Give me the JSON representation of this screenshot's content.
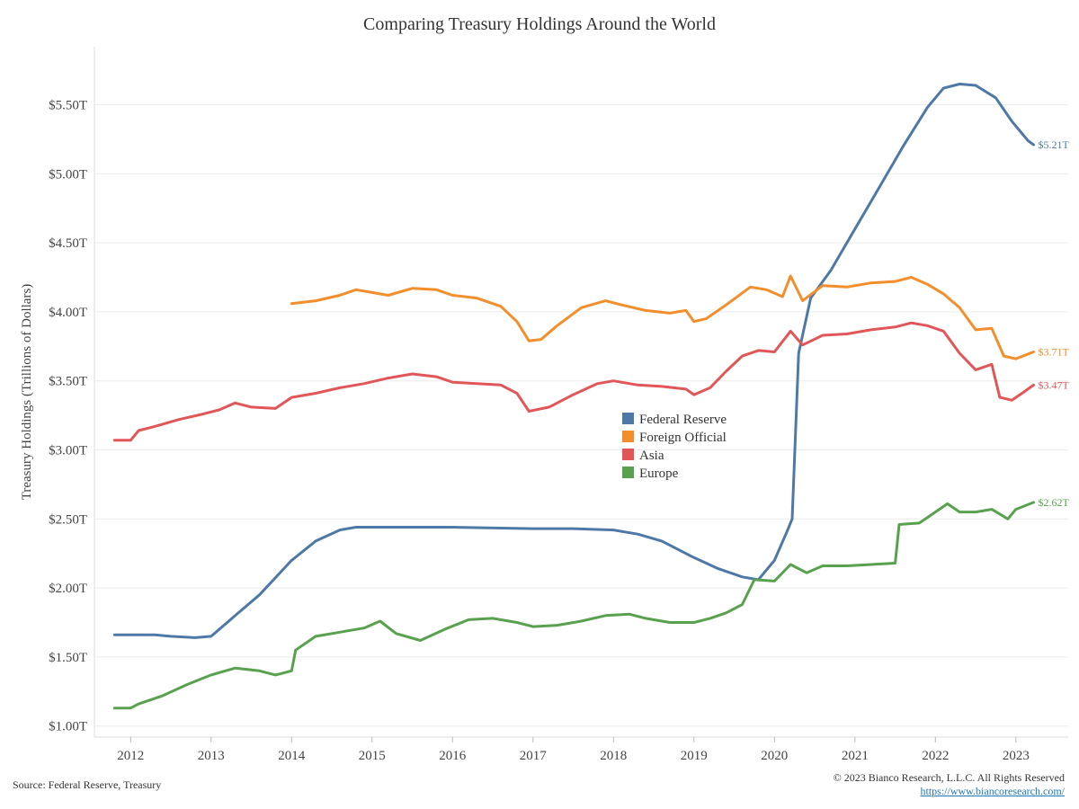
{
  "chart_data": {
    "type": "line",
    "title": "Comparing Treasury Holdings Around the World",
    "ylabel": "Treasury Holdings (Trillions of Dollars)",
    "xlabel": "",
    "xlim": [
      2011.55,
      2023.65
    ],
    "ylim": [
      0.92,
      5.92
    ],
    "x_ticks": [
      2012,
      2013,
      2014,
      2015,
      2016,
      2017,
      2018,
      2019,
      2020,
      2021,
      2022,
      2023
    ],
    "x_tick_labels": [
      "2012",
      "2013",
      "2014",
      "2015",
      "2016",
      "2017",
      "2018",
      "2019",
      "2020",
      "2021",
      "2022",
      "2023"
    ],
    "y_ticks": [
      1.0,
      1.5,
      2.0,
      2.5,
      3.0,
      3.5,
      4.0,
      4.5,
      5.0,
      5.5
    ],
    "y_tick_labels": [
      "$1.00T",
      "$1.50T",
      "$2.00T",
      "$2.50T",
      "$3.00T",
      "$3.50T",
      "$4.00T",
      "$4.50T",
      "$5.00T",
      "$5.50T"
    ],
    "grid": "horizontal",
    "legend_position": "center",
    "series": [
      {
        "name": "Federal Reserve",
        "color": "#4e79a7",
        "end_label": "$5.21T",
        "points": [
          [
            2011.8,
            1.66
          ],
          [
            2012.0,
            1.66
          ],
          [
            2012.3,
            1.66
          ],
          [
            2012.5,
            1.65
          ],
          [
            2012.8,
            1.64
          ],
          [
            2013.0,
            1.65
          ],
          [
            2013.3,
            1.8
          ],
          [
            2013.6,
            1.95
          ],
          [
            2014.0,
            2.2
          ],
          [
            2014.3,
            2.34
          ],
          [
            2014.6,
            2.42
          ],
          [
            2014.8,
            2.44
          ],
          [
            2015.0,
            2.44
          ],
          [
            2016.0,
            2.44
          ],
          [
            2017.0,
            2.43
          ],
          [
            2017.5,
            2.43
          ],
          [
            2018.0,
            2.42
          ],
          [
            2018.3,
            2.39
          ],
          [
            2018.6,
            2.34
          ],
          [
            2019.0,
            2.22
          ],
          [
            2019.3,
            2.14
          ],
          [
            2019.6,
            2.08
          ],
          [
            2019.8,
            2.06
          ],
          [
            2020.0,
            2.2
          ],
          [
            2020.15,
            2.4
          ],
          [
            2020.22,
            2.5
          ],
          [
            2020.3,
            3.7
          ],
          [
            2020.45,
            4.1
          ],
          [
            2020.7,
            4.3
          ],
          [
            2021.0,
            4.6
          ],
          [
            2021.3,
            4.9
          ],
          [
            2021.6,
            5.2
          ],
          [
            2021.9,
            5.48
          ],
          [
            2022.1,
            5.62
          ],
          [
            2022.3,
            5.65
          ],
          [
            2022.5,
            5.64
          ],
          [
            2022.75,
            5.55
          ],
          [
            2022.95,
            5.38
          ],
          [
            2023.15,
            5.24
          ],
          [
            2023.22,
            5.21
          ]
        ]
      },
      {
        "name": "Foreign Official",
        "color": "#f28e2b",
        "end_label": "$3.71T",
        "points": [
          [
            2014.0,
            4.06
          ],
          [
            2014.3,
            4.08
          ],
          [
            2014.6,
            4.12
          ],
          [
            2014.8,
            4.16
          ],
          [
            2015.0,
            4.14
          ],
          [
            2015.2,
            4.12
          ],
          [
            2015.5,
            4.17
          ],
          [
            2015.8,
            4.16
          ],
          [
            2016.0,
            4.12
          ],
          [
            2016.3,
            4.1
          ],
          [
            2016.6,
            4.04
          ],
          [
            2016.8,
            3.93
          ],
          [
            2016.95,
            3.79
          ],
          [
            2017.1,
            3.8
          ],
          [
            2017.3,
            3.9
          ],
          [
            2017.6,
            4.03
          ],
          [
            2017.9,
            4.08
          ],
          [
            2018.1,
            4.05
          ],
          [
            2018.4,
            4.01
          ],
          [
            2018.7,
            3.99
          ],
          [
            2018.9,
            4.01
          ],
          [
            2019.0,
            3.93
          ],
          [
            2019.15,
            3.95
          ],
          [
            2019.4,
            4.05
          ],
          [
            2019.7,
            4.18
          ],
          [
            2019.9,
            4.16
          ],
          [
            2020.1,
            4.11
          ],
          [
            2020.2,
            4.26
          ],
          [
            2020.35,
            4.08
          ],
          [
            2020.6,
            4.19
          ],
          [
            2020.9,
            4.18
          ],
          [
            2021.2,
            4.21
          ],
          [
            2021.5,
            4.22
          ],
          [
            2021.7,
            4.25
          ],
          [
            2021.9,
            4.2
          ],
          [
            2022.1,
            4.13
          ],
          [
            2022.3,
            4.03
          ],
          [
            2022.5,
            3.87
          ],
          [
            2022.7,
            3.88
          ],
          [
            2022.85,
            3.68
          ],
          [
            2023.0,
            3.66
          ],
          [
            2023.22,
            3.71
          ]
        ]
      },
      {
        "name": "Asia",
        "color": "#e15759",
        "end_label": "$3.47T",
        "points": [
          [
            2011.8,
            3.07
          ],
          [
            2012.0,
            3.07
          ],
          [
            2012.1,
            3.14
          ],
          [
            2012.3,
            3.17
          ],
          [
            2012.6,
            3.22
          ],
          [
            2012.9,
            3.26
          ],
          [
            2013.1,
            3.29
          ],
          [
            2013.3,
            3.34
          ],
          [
            2013.5,
            3.31
          ],
          [
            2013.8,
            3.3
          ],
          [
            2014.0,
            3.38
          ],
          [
            2014.3,
            3.41
          ],
          [
            2014.6,
            3.45
          ],
          [
            2014.9,
            3.48
          ],
          [
            2015.2,
            3.52
          ],
          [
            2015.5,
            3.55
          ],
          [
            2015.8,
            3.53
          ],
          [
            2016.0,
            3.49
          ],
          [
            2016.3,
            3.48
          ],
          [
            2016.6,
            3.47
          ],
          [
            2016.8,
            3.41
          ],
          [
            2016.95,
            3.28
          ],
          [
            2017.2,
            3.31
          ],
          [
            2017.5,
            3.4
          ],
          [
            2017.8,
            3.48
          ],
          [
            2018.0,
            3.5
          ],
          [
            2018.3,
            3.47
          ],
          [
            2018.6,
            3.46
          ],
          [
            2018.9,
            3.44
          ],
          [
            2019.0,
            3.4
          ],
          [
            2019.2,
            3.45
          ],
          [
            2019.4,
            3.57
          ],
          [
            2019.6,
            3.68
          ],
          [
            2019.8,
            3.72
          ],
          [
            2020.0,
            3.71
          ],
          [
            2020.2,
            3.86
          ],
          [
            2020.35,
            3.76
          ],
          [
            2020.6,
            3.83
          ],
          [
            2020.9,
            3.84
          ],
          [
            2021.2,
            3.87
          ],
          [
            2021.5,
            3.89
          ],
          [
            2021.7,
            3.92
          ],
          [
            2021.9,
            3.9
          ],
          [
            2022.1,
            3.86
          ],
          [
            2022.3,
            3.7
          ],
          [
            2022.5,
            3.58
          ],
          [
            2022.7,
            3.62
          ],
          [
            2022.8,
            3.38
          ],
          [
            2022.95,
            3.36
          ],
          [
            2023.1,
            3.42
          ],
          [
            2023.22,
            3.47
          ]
        ]
      },
      {
        "name": "Europe",
        "color": "#59a14f",
        "end_label": "$2.62T",
        "points": [
          [
            2011.8,
            1.13
          ],
          [
            2012.0,
            1.13
          ],
          [
            2012.1,
            1.16
          ],
          [
            2012.4,
            1.22
          ],
          [
            2012.7,
            1.3
          ],
          [
            2013.0,
            1.37
          ],
          [
            2013.3,
            1.42
          ],
          [
            2013.6,
            1.4
          ],
          [
            2013.8,
            1.37
          ],
          [
            2014.0,
            1.4
          ],
          [
            2014.05,
            1.55
          ],
          [
            2014.3,
            1.65
          ],
          [
            2014.6,
            1.68
          ],
          [
            2014.9,
            1.71
          ],
          [
            2015.1,
            1.76
          ],
          [
            2015.3,
            1.67
          ],
          [
            2015.6,
            1.62
          ],
          [
            2015.9,
            1.7
          ],
          [
            2016.2,
            1.77
          ],
          [
            2016.5,
            1.78
          ],
          [
            2016.8,
            1.75
          ],
          [
            2017.0,
            1.72
          ],
          [
            2017.3,
            1.73
          ],
          [
            2017.6,
            1.76
          ],
          [
            2017.9,
            1.8
          ],
          [
            2018.2,
            1.81
          ],
          [
            2018.4,
            1.78
          ],
          [
            2018.7,
            1.75
          ],
          [
            2019.0,
            1.75
          ],
          [
            2019.2,
            1.78
          ],
          [
            2019.4,
            1.82
          ],
          [
            2019.6,
            1.88
          ],
          [
            2019.75,
            2.06
          ],
          [
            2020.0,
            2.05
          ],
          [
            2020.2,
            2.17
          ],
          [
            2020.4,
            2.11
          ],
          [
            2020.6,
            2.16
          ],
          [
            2020.9,
            2.16
          ],
          [
            2021.2,
            2.17
          ],
          [
            2021.5,
            2.18
          ],
          [
            2021.55,
            2.46
          ],
          [
            2021.8,
            2.47
          ],
          [
            2022.0,
            2.55
          ],
          [
            2022.15,
            2.61
          ],
          [
            2022.3,
            2.55
          ],
          [
            2022.5,
            2.55
          ],
          [
            2022.7,
            2.57
          ],
          [
            2022.9,
            2.5
          ],
          [
            2023.0,
            2.57
          ],
          [
            2023.22,
            2.62
          ]
        ]
      }
    ]
  },
  "footer": {
    "source": "Source: Federal Reserve, Treasury",
    "copyright": "© 2023 Bianco Research, L.L.C. All Rights Reserved",
    "link": "https://www.biancoresearch.com/"
  }
}
